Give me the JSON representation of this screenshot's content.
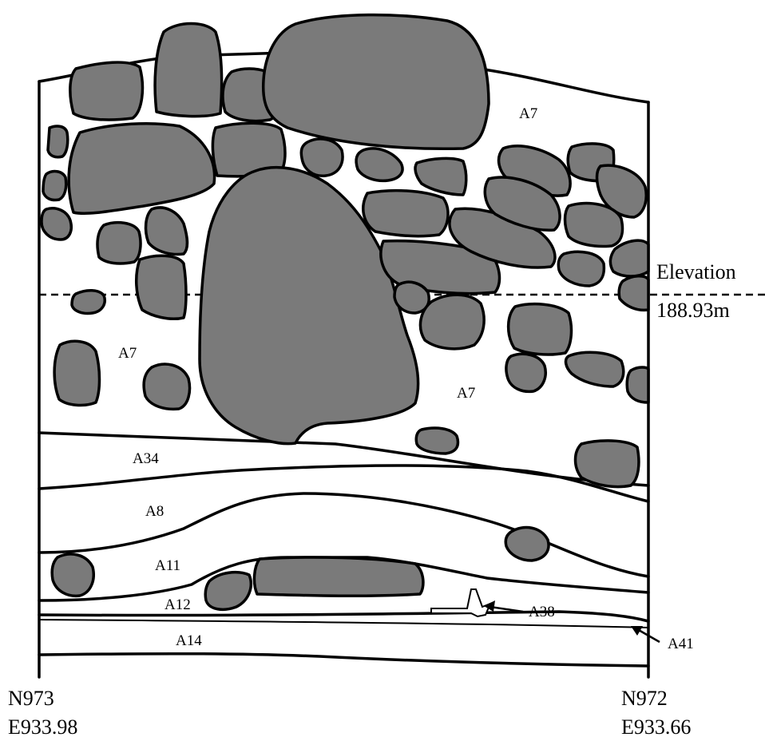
{
  "profile": {
    "layers": {
      "a7_top": "A7",
      "a7_left": "A7",
      "a7_right": "A7",
      "a34": "A34",
      "a8": "A8",
      "a11": "A11",
      "a12": "A12",
      "a14": "A14",
      "a38": "A38",
      "a41": "A41"
    },
    "elevation": {
      "label": "Elevation",
      "value": "188.93m"
    },
    "corners": {
      "left_north": "N973",
      "left_east": "E933.98",
      "right_north": "N972",
      "right_east": "E933.66"
    }
  },
  "colors": {
    "rock_fill": "#7a7a7a",
    "outline": "#000000",
    "background": "#ffffff"
  }
}
